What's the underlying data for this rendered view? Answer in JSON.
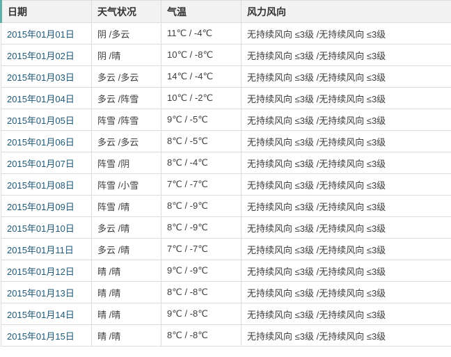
{
  "colors": {
    "accent": "#5fb0ab",
    "grid": "#dcdcdc",
    "header_bg": "#f2f2f2",
    "header_text": "#333333",
    "link": "#1d5877",
    "body_text": "#3d3d3d"
  },
  "table": {
    "columns": {
      "date": "日期",
      "weather": "天气状况",
      "temp": "气温",
      "wind": "风力风向"
    },
    "rows": [
      {
        "date": "2015年01月01日",
        "weather": "阴 /多云",
        "temp": "11℃ / -4℃",
        "wind": "无持续风向 ≤3级 /无持续风向 ≤3级"
      },
      {
        "date": "2015年01月02日",
        "weather": "阴 /晴",
        "temp": "10℃ / -8℃",
        "wind": "无持续风向 ≤3级 /无持续风向 ≤3级"
      },
      {
        "date": "2015年01月03日",
        "weather": "多云 /多云",
        "temp": "14℃ / -4℃",
        "wind": "无持续风向 ≤3级 /无持续风向 ≤3级"
      },
      {
        "date": "2015年01月04日",
        "weather": "多云 /阵雪",
        "temp": "10℃ / -2℃",
        "wind": "无持续风向 ≤3级 /无持续风向 ≤3级"
      },
      {
        "date": "2015年01月05日",
        "weather": "阵雪 /阵雪",
        "temp": "9℃ / -5℃",
        "wind": "无持续风向 ≤3级 /无持续风向 ≤3级"
      },
      {
        "date": "2015年01月06日",
        "weather": "多云 /多云",
        "temp": "8℃ / -5℃",
        "wind": "无持续风向 ≤3级 /无持续风向 ≤3级"
      },
      {
        "date": "2015年01月07日",
        "weather": "阵雪 /阴",
        "temp": "8℃ / -4℃",
        "wind": "无持续风向 ≤3级 /无持续风向 ≤3级"
      },
      {
        "date": "2015年01月08日",
        "weather": "阵雪 /小雪",
        "temp": "7℃ / -7℃",
        "wind": "无持续风向 ≤3级 /无持续风向 ≤3级"
      },
      {
        "date": "2015年01月09日",
        "weather": "阵雪 /晴",
        "temp": "8℃ / -9℃",
        "wind": "无持续风向 ≤3级 /无持续风向 ≤3级"
      },
      {
        "date": "2015年01月10日",
        "weather": "多云 /晴",
        "temp": "8℃ / -9℃",
        "wind": "无持续风向 ≤3级 /无持续风向 ≤3级"
      },
      {
        "date": "2015年01月11日",
        "weather": "多云 /晴",
        "temp": "7℃ / -7℃",
        "wind": "无持续风向 ≤3级 /无持续风向 ≤3级"
      },
      {
        "date": "2015年01月12日",
        "weather": "晴 /晴",
        "temp": "9℃ / -9℃",
        "wind": "无持续风向 ≤3级 /无持续风向 ≤3级"
      },
      {
        "date": "2015年01月13日",
        "weather": "晴 /晴",
        "temp": "8℃ / -8℃",
        "wind": "无持续风向 ≤3级 /无持续风向 ≤3级"
      },
      {
        "date": "2015年01月14日",
        "weather": "晴 /晴",
        "temp": "9℃ / -8℃",
        "wind": "无持续风向 ≤3级 /无持续风向 ≤3级"
      },
      {
        "date": "2015年01月15日",
        "weather": "晴 /晴",
        "temp": "8℃ / -8℃",
        "wind": "无持续风向 ≤3级 /无持续风向 ≤3级"
      }
    ]
  }
}
